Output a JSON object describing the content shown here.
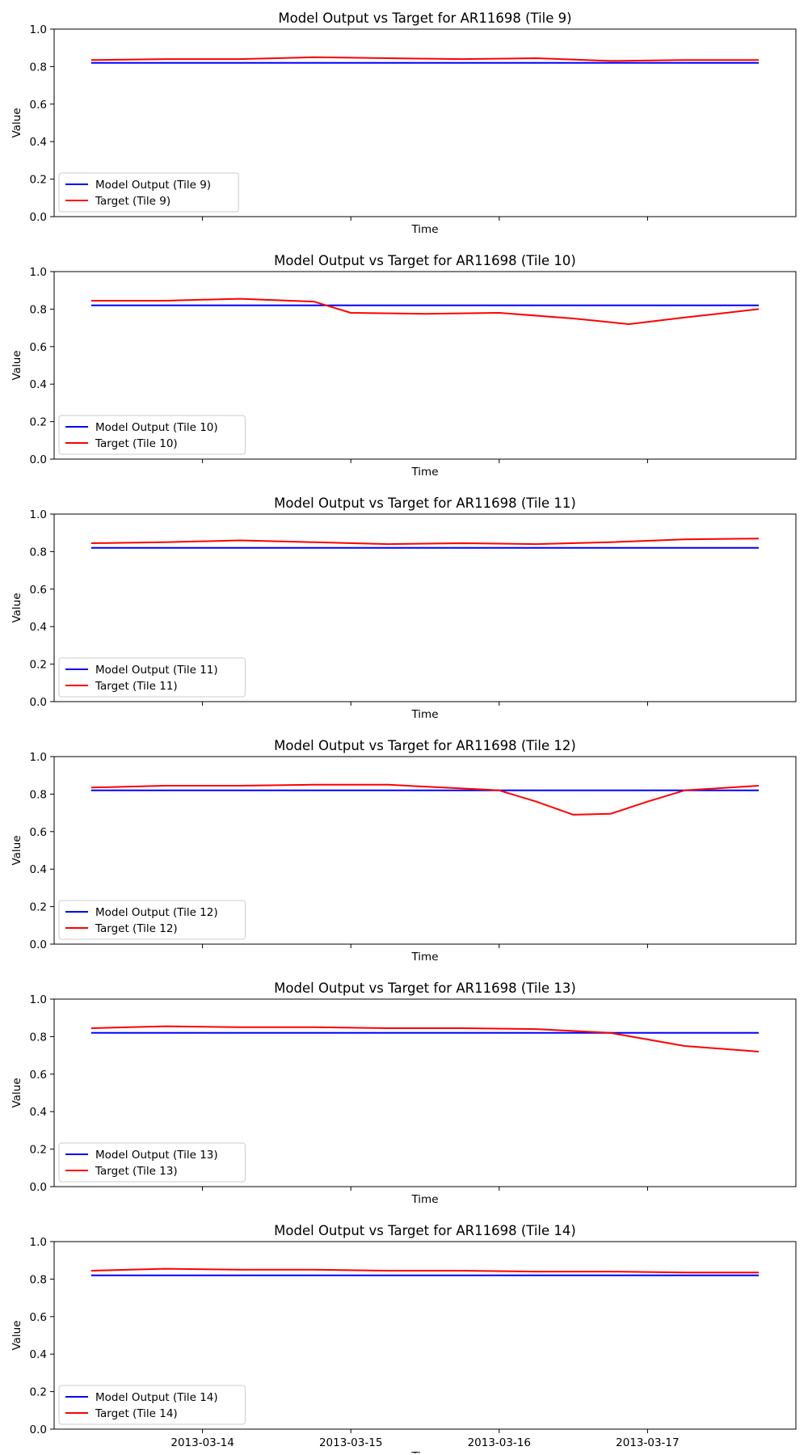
{
  "chart_data": [
    {
      "type": "line",
      "title": "Model Output vs Target for AR11698 (Tile 9)",
      "xlabel": "Time",
      "ylabel": "Value",
      "ylim": [
        0,
        1
      ],
      "yticks": [
        "0.0",
        "0.2",
        "0.4",
        "0.6",
        "0.8",
        "1.0"
      ],
      "xticks": [],
      "legend_position": "lower-left",
      "grid": false,
      "series": [
        {
          "name": "Model Output (Tile 9)",
          "color": "#0000ff",
          "x": [
            "2013-03-13 06:00",
            "2013-03-17 18:00"
          ],
          "y": [
            0.82,
            0.82
          ]
        },
        {
          "name": "Target (Tile 9)",
          "color": "#ff0000",
          "x": [
            "2013-03-13 06:00",
            "2013-03-13 18:00",
            "2013-03-14 06:00",
            "2013-03-14 18:00",
            "2013-03-15 06:00",
            "2013-03-15 18:00",
            "2013-03-16 06:00",
            "2013-03-16 18:00",
            "2013-03-17 06:00",
            "2013-03-17 18:00"
          ],
          "y": [
            0.835,
            0.84,
            0.84,
            0.85,
            0.845,
            0.84,
            0.845,
            0.83,
            0.835,
            0.835
          ]
        }
      ]
    },
    {
      "type": "line",
      "title": "Model Output vs Target for AR11698 (Tile 10)",
      "xlabel": "Time",
      "ylabel": "Value",
      "ylim": [
        0,
        1
      ],
      "yticks": [
        "0.0",
        "0.2",
        "0.4",
        "0.6",
        "0.8",
        "1.0"
      ],
      "xticks": [],
      "legend_position": "lower-left",
      "grid": false,
      "series": [
        {
          "name": "Model Output (Tile 10)",
          "color": "#0000ff",
          "x": [
            "2013-03-13 06:00",
            "2013-03-17 18:00"
          ],
          "y": [
            0.82,
            0.82
          ]
        },
        {
          "name": "Target (Tile 10)",
          "color": "#ff0000",
          "x": [
            "2013-03-13 06:00",
            "2013-03-13 18:00",
            "2013-03-14 06:00",
            "2013-03-14 18:00",
            "2013-03-15 00:00",
            "2013-03-15 12:00",
            "2013-03-16 00:00",
            "2013-03-16 12:00",
            "2013-03-16 21:00",
            "2013-03-17 06:00",
            "2013-03-17 18:00"
          ],
          "y": [
            0.845,
            0.845,
            0.855,
            0.84,
            0.78,
            0.775,
            0.78,
            0.75,
            0.72,
            0.755,
            0.8
          ]
        }
      ]
    },
    {
      "type": "line",
      "title": "Model Output vs Target for AR11698 (Tile 11)",
      "xlabel": "Time",
      "ylabel": "Value",
      "ylim": [
        0,
        1
      ],
      "yticks": [
        "0.0",
        "0.2",
        "0.4",
        "0.6",
        "0.8",
        "1.0"
      ],
      "xticks": [],
      "legend_position": "lower-left",
      "grid": false,
      "series": [
        {
          "name": "Model Output (Tile 11)",
          "color": "#0000ff",
          "x": [
            "2013-03-13 06:00",
            "2013-03-17 18:00"
          ],
          "y": [
            0.82,
            0.82
          ]
        },
        {
          "name": "Target (Tile 11)",
          "color": "#ff0000",
          "x": [
            "2013-03-13 06:00",
            "2013-03-13 18:00",
            "2013-03-14 06:00",
            "2013-03-14 18:00",
            "2013-03-15 06:00",
            "2013-03-15 18:00",
            "2013-03-16 06:00",
            "2013-03-16 18:00",
            "2013-03-17 06:00",
            "2013-03-17 18:00"
          ],
          "y": [
            0.845,
            0.85,
            0.86,
            0.85,
            0.84,
            0.845,
            0.84,
            0.85,
            0.865,
            0.87
          ]
        }
      ]
    },
    {
      "type": "line",
      "title": "Model Output vs Target for AR11698 (Tile 12)",
      "xlabel": "Time",
      "ylabel": "Value",
      "ylim": [
        0,
        1
      ],
      "yticks": [
        "0.0",
        "0.2",
        "0.4",
        "0.6",
        "0.8",
        "1.0"
      ],
      "xticks": [],
      "legend_position": "lower-left",
      "grid": false,
      "series": [
        {
          "name": "Model Output (Tile 12)",
          "color": "#0000ff",
          "x": [
            "2013-03-13 06:00",
            "2013-03-17 18:00"
          ],
          "y": [
            0.82,
            0.82
          ]
        },
        {
          "name": "Target (Tile 12)",
          "color": "#ff0000",
          "x": [
            "2013-03-13 06:00",
            "2013-03-13 18:00",
            "2013-03-14 06:00",
            "2013-03-14 18:00",
            "2013-03-15 06:00",
            "2013-03-15 18:00",
            "2013-03-16 00:00",
            "2013-03-16 06:00",
            "2013-03-16 12:00",
            "2013-03-16 18:00",
            "2013-03-17 00:00",
            "2013-03-17 06:00",
            "2013-03-17 18:00"
          ],
          "y": [
            0.835,
            0.845,
            0.845,
            0.85,
            0.85,
            0.83,
            0.82,
            0.76,
            0.69,
            0.695,
            0.76,
            0.82,
            0.845
          ]
        }
      ]
    },
    {
      "type": "line",
      "title": "Model Output vs Target for AR11698 (Tile 13)",
      "xlabel": "Time",
      "ylabel": "Value",
      "ylim": [
        0,
        1
      ],
      "yticks": [
        "0.0",
        "0.2",
        "0.4",
        "0.6",
        "0.8",
        "1.0"
      ],
      "xticks": [],
      "legend_position": "lower-left",
      "grid": false,
      "series": [
        {
          "name": "Model Output (Tile 13)",
          "color": "#0000ff",
          "x": [
            "2013-03-13 06:00",
            "2013-03-17 18:00"
          ],
          "y": [
            0.82,
            0.82
          ]
        },
        {
          "name": "Target (Tile 13)",
          "color": "#ff0000",
          "x": [
            "2013-03-13 06:00",
            "2013-03-13 18:00",
            "2013-03-14 06:00",
            "2013-03-14 18:00",
            "2013-03-15 06:00",
            "2013-03-15 18:00",
            "2013-03-16 06:00",
            "2013-03-16 18:00",
            "2013-03-17 00:00",
            "2013-03-17 06:00",
            "2013-03-17 18:00"
          ],
          "y": [
            0.845,
            0.855,
            0.85,
            0.85,
            0.845,
            0.845,
            0.84,
            0.82,
            0.785,
            0.75,
            0.72
          ]
        }
      ]
    },
    {
      "type": "line",
      "title": "Model Output vs Target for AR11698 (Tile 14)",
      "xlabel": "Time",
      "ylabel": "Value",
      "ylim": [
        0,
        1
      ],
      "yticks": [
        "0.0",
        "0.2",
        "0.4",
        "0.6",
        "0.8",
        "1.0"
      ],
      "xticks": [
        "2013-03-14",
        "2013-03-15",
        "2013-03-16",
        "2013-03-17"
      ],
      "legend_position": "lower-left",
      "grid": false,
      "series": [
        {
          "name": "Model Output (Tile 14)",
          "color": "#0000ff",
          "x": [
            "2013-03-13 06:00",
            "2013-03-17 18:00"
          ],
          "y": [
            0.82,
            0.82
          ]
        },
        {
          "name": "Target (Tile 14)",
          "color": "#ff0000",
          "x": [
            "2013-03-13 06:00",
            "2013-03-13 18:00",
            "2013-03-14 06:00",
            "2013-03-14 18:00",
            "2013-03-15 06:00",
            "2013-03-15 18:00",
            "2013-03-16 06:00",
            "2013-03-16 18:00",
            "2013-03-17 06:00",
            "2013-03-17 18:00"
          ],
          "y": [
            0.845,
            0.855,
            0.85,
            0.85,
            0.845,
            0.845,
            0.84,
            0.84,
            0.835,
            0.835
          ]
        }
      ]
    }
  ]
}
